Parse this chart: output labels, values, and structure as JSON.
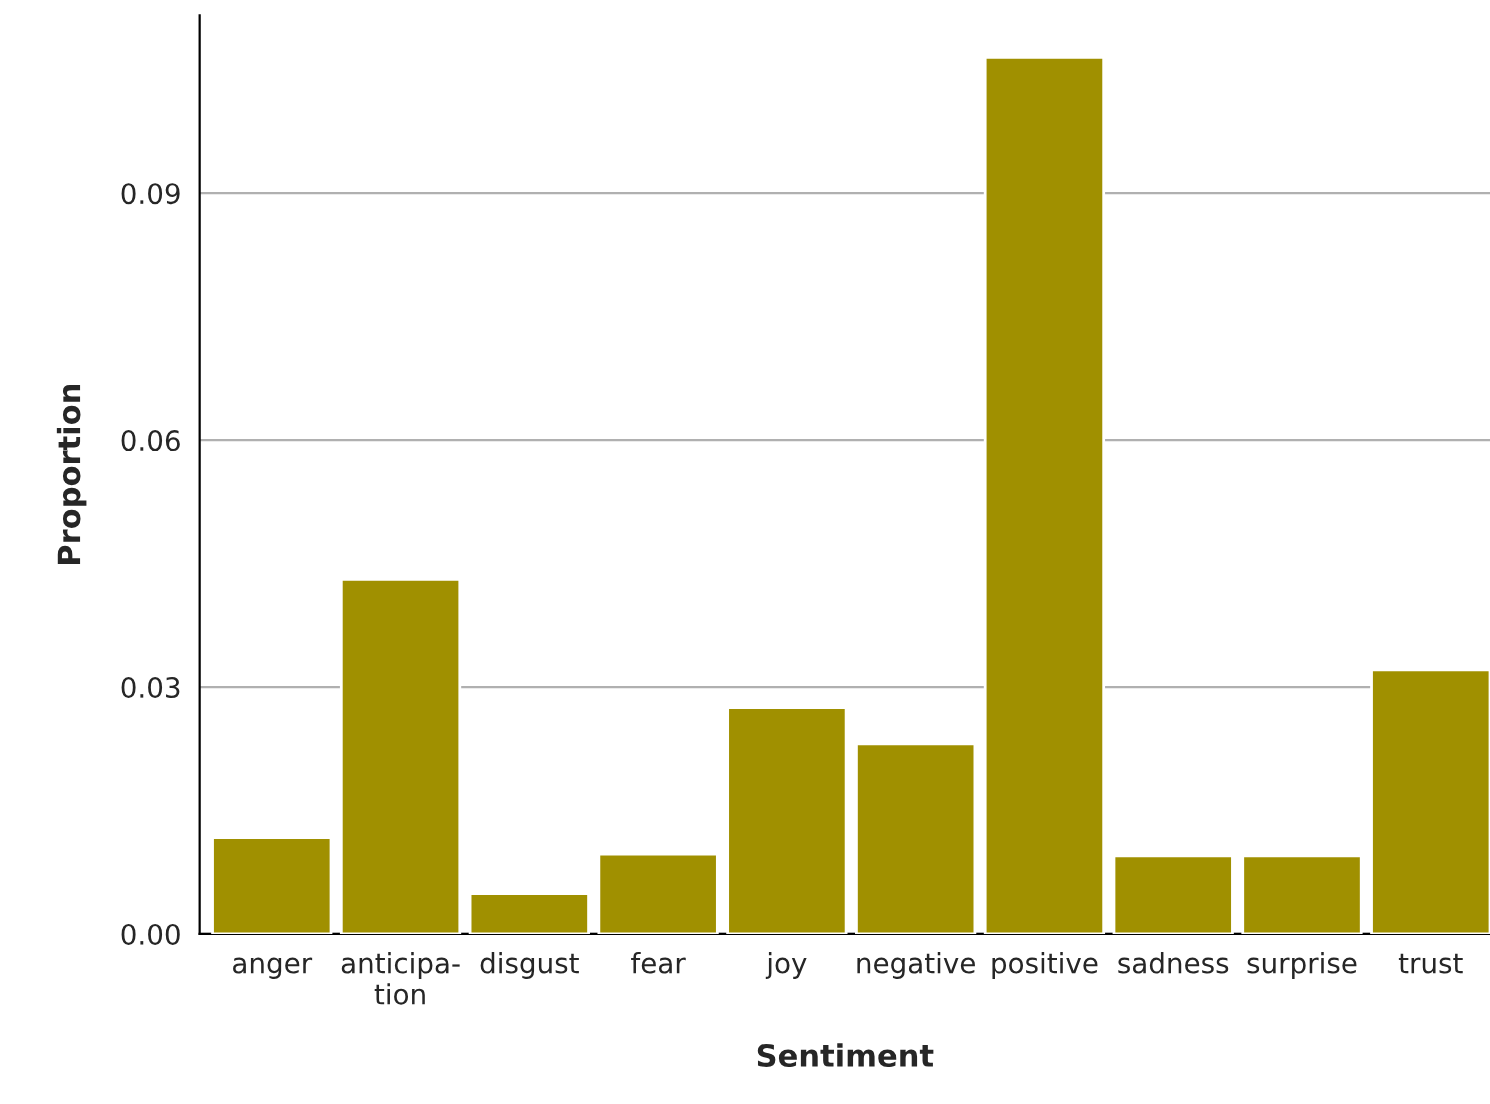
{
  "chart_data": {
    "type": "bar",
    "xlabel": "Sentiment",
    "ylabel": "Proportion",
    "categories": [
      "anger",
      "anticipa-\ntion",
      "disgust",
      "fear",
      "joy",
      "negative",
      "positive",
      "sadness",
      "surprise",
      "trust"
    ],
    "values": [
      0.0117,
      0.0431,
      0.0049,
      0.0097,
      0.0275,
      0.0231,
      0.1065,
      0.0095,
      0.0095,
      0.0321
    ],
    "color": "#a09000",
    "ylim": [
      0,
      0.1116
    ],
    "yticks": [
      {
        "value": 0,
        "label": "0.00"
      },
      {
        "value": 0.03,
        "label": "0.03"
      },
      {
        "value": 0.06,
        "label": "0.06"
      },
      {
        "value": 0.09,
        "label": "0.09"
      }
    ],
    "grid": "y",
    "legend": false
  }
}
